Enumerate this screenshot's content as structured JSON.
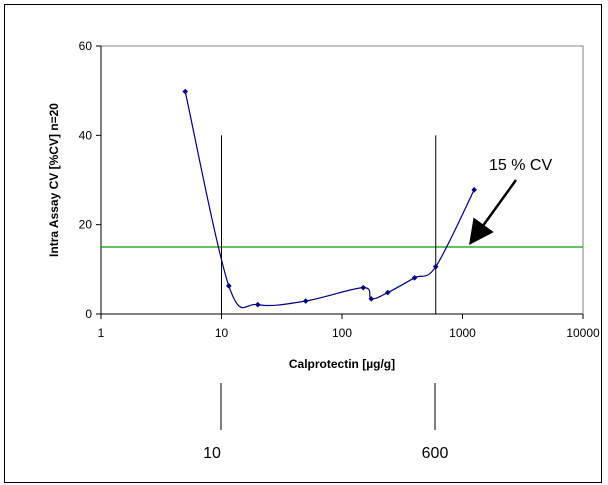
{
  "chart_data": {
    "type": "scatter",
    "title": "",
    "xlabel": "Calprotectin [µg/g]",
    "ylabel": "Intra Assay CV [%CV] n=20",
    "xscale": "log",
    "xlim": [
      1,
      10000
    ],
    "ylim": [
      0,
      60
    ],
    "x_ticks": [
      1,
      10,
      100,
      1000,
      10000
    ],
    "x_tick_labels": [
      "1",
      "10",
      "100",
      "1000",
      "10000"
    ],
    "y_ticks": [
      0,
      20,
      40,
      60
    ],
    "y_tick_labels": [
      "0",
      "20",
      "40",
      "60"
    ],
    "grid": false,
    "legend": "none",
    "series": [
      {
        "x": [
          5,
          11.5,
          20,
          50,
          150,
          175,
          240,
          400,
          600,
          1250
        ],
        "y": [
          49.8,
          6.3,
          2.1,
          2.9,
          5.9,
          3.4,
          4.8,
          8.1,
          10.6,
          27.8
        ],
        "color": "#000080",
        "marker": "diamond",
        "smooth": true
      }
    ],
    "reference_lines": [
      {
        "orientation": "horizontal",
        "y": 15,
        "color": "#00a000"
      },
      {
        "orientation": "vertical",
        "x": 10,
        "color": "#000000"
      },
      {
        "orientation": "vertical",
        "x": 600,
        "color": "#000000"
      }
    ],
    "annotations": {
      "cv_label": "15 % CV",
      "lower_limit_label": "10",
      "upper_limit_label": "600"
    }
  }
}
